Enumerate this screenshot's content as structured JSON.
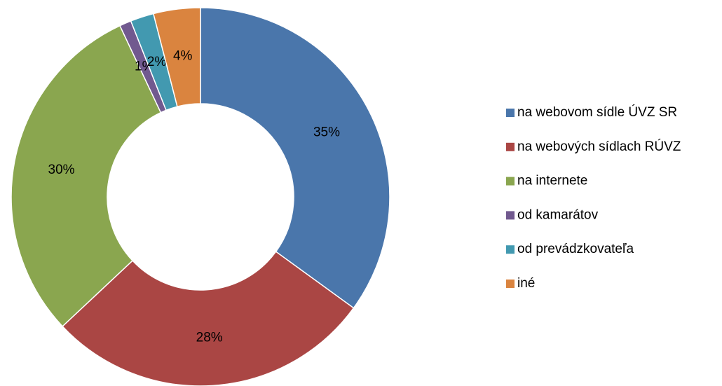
{
  "chart_data": {
    "type": "donut",
    "categories": [
      "na webovom sídle ÚVZ SR",
      "na webových sídlach RÚVZ",
      "na internete",
      "od kamarátov",
      "od prevádzkovateľa",
      "iné"
    ],
    "values": [
      35,
      28,
      30,
      1,
      2,
      4
    ],
    "value_labels": [
      "35%",
      "28%",
      "30%",
      "1%",
      "2%",
      "4%"
    ],
    "colors": [
      "#4a76ab",
      "#aa4644",
      "#8aa64f",
      "#71598f",
      "#4299b0",
      "#da843f"
    ],
    "legend": "right"
  }
}
